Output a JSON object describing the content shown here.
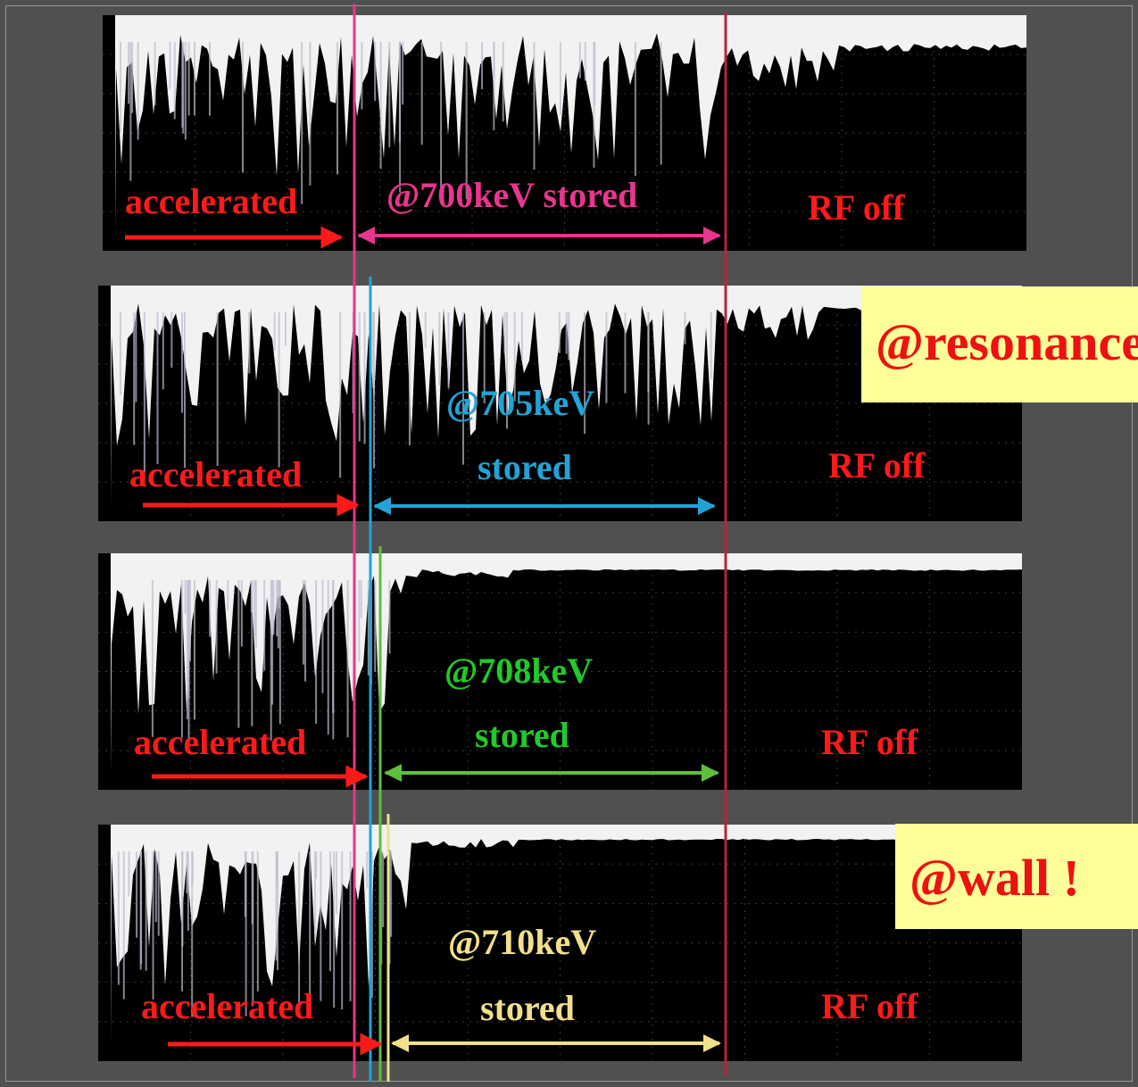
{
  "panels": [
    {
      "id": "700",
      "accelerated_label": "accelerated",
      "stored_label": "@700keV stored",
      "stored_color": "#e8358e",
      "rf_label": "RF off"
    },
    {
      "id": "705",
      "accelerated_label": "accelerated",
      "energy_label": "@705keV",
      "stored_label": "stored",
      "stored_color": "#22a3d6",
      "rf_label": "RF off"
    },
    {
      "id": "708",
      "accelerated_label": "accelerated",
      "energy_label": "@708keV",
      "stored_label": "stored",
      "stored_color": "#22c92a",
      "rf_label": "RF off"
    },
    {
      "id": "710",
      "accelerated_label": "accelerated",
      "energy_label": "@710keV",
      "stored_label": "stored",
      "stored_color": "#f1e08a",
      "rf_label": "RF off"
    }
  ],
  "callouts": {
    "resonance": "@resonance",
    "wall": "@wall !"
  },
  "colors": {
    "accelerated": "#ff1a1a",
    "rf_off": "#ff1a1a",
    "line_700": "#e8358e",
    "line_705": "#22a3d6",
    "line_708": "#5fbf3c",
    "line_710": "#f1e08a",
    "rf_off_line": "#b3263c",
    "callout_bg": "#ffff99"
  }
}
